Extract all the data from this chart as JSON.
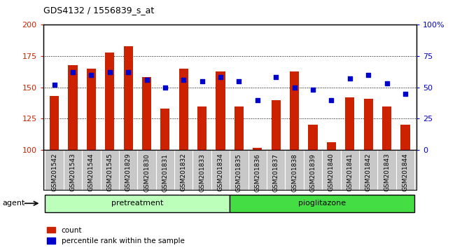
{
  "title": "GDS4132 / 1556839_s_at",
  "samples": [
    "GSM201542",
    "GSM201543",
    "GSM201544",
    "GSM201545",
    "GSM201829",
    "GSM201830",
    "GSM201831",
    "GSM201832",
    "GSM201833",
    "GSM201834",
    "GSM201835",
    "GSM201836",
    "GSM201837",
    "GSM201838",
    "GSM201839",
    "GSM201840",
    "GSM201841",
    "GSM201842",
    "GSM201843",
    "GSM201844"
  ],
  "counts": [
    143,
    168,
    165,
    178,
    183,
    158,
    133,
    165,
    135,
    163,
    135,
    102,
    140,
    163,
    120,
    106,
    142,
    141,
    135,
    120
  ],
  "percentiles": [
    52,
    62,
    60,
    62,
    62,
    56,
    50,
    56,
    55,
    58,
    55,
    40,
    58,
    50,
    48,
    40,
    57,
    60,
    53,
    45
  ],
  "bar_color": "#cc2200",
  "dot_color": "#0000cc",
  "ylim_left": [
    100,
    200
  ],
  "ylim_right": [
    0,
    100
  ],
  "yticks_left": [
    100,
    125,
    150,
    175,
    200
  ],
  "yticks_right": [
    0,
    25,
    50,
    75,
    100
  ],
  "ytick_labels_left": [
    "100",
    "125",
    "150",
    "175",
    "200"
  ],
  "ytick_labels_right": [
    "0",
    "25",
    "50",
    "75",
    "100%"
  ],
  "pretreatment_count": 10,
  "pioglitazone_count": 10,
  "agent_label": "agent",
  "pretreatment_label": "pretreatment",
  "pioglitazone_label": "pioglitazone",
  "legend_count_label": "count",
  "legend_pct_label": "percentile rank within the sample",
  "bg_plot": "#ffffff",
  "bg_strip": "#c8c8c8",
  "bg_pretreatment": "#bbffbb",
  "bg_pioglitazone": "#44dd44",
  "grid_color": "#000000",
  "bar_width": 0.5
}
